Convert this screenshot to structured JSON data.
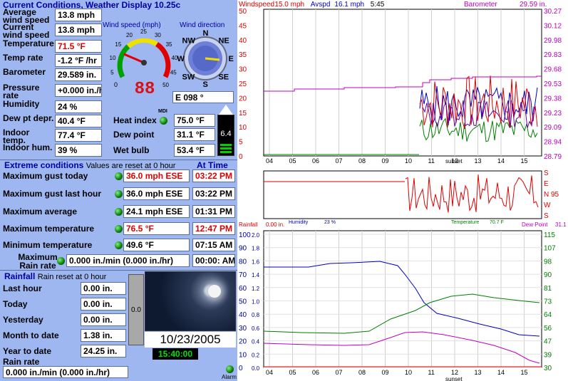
{
  "current": {
    "title": "Current Conditions, Weather Display 10.25c",
    "rows": [
      {
        "label": "Average wind speed",
        "value": "13.8 mph"
      },
      {
        "label": "Current wind speed",
        "value": "13.8 mph"
      },
      {
        "label": "Temperature",
        "value": "71.5 °F"
      },
      {
        "label": "Temp rate",
        "value": "-1.2 °F /hr"
      },
      {
        "label": "Barometer",
        "value": "29.589 in."
      },
      {
        "label": "Pressure rate",
        "value": "+0.000 in./hr"
      },
      {
        "label": "Humidity",
        "value": "24 %"
      },
      {
        "label": "Dew pt depr.",
        "value": "40.4 °F"
      },
      {
        "label": "Indoor temp.",
        "value": "77.4 °F"
      },
      {
        "label": "Indoor hum.",
        "value": "39 %"
      }
    ],
    "right_rows": [
      {
        "label": "Heat index",
        "value": "75.0 °F"
      },
      {
        "label": "Dew point",
        "value": "31.1 °F"
      },
      {
        "label": "Wet bulb",
        "value": "53.4 °F"
      }
    ],
    "mdi": "MDI",
    "uv_value": "6.4"
  },
  "gauges": {
    "speed_title": "Wind speed (mph)",
    "direction_title": "Wind direction",
    "speed_ticks": [
      "5",
      "10",
      "15",
      "20",
      "25",
      "30",
      "35",
      "40",
      "45",
      "50"
    ],
    "speed_digital": "88",
    "speed_zero": "0",
    "compass": [
      "N",
      "NE",
      "E",
      "SE",
      "S",
      "SW",
      "W",
      "NW"
    ],
    "direction_readout": "E  098 °"
  },
  "extremes": {
    "title": "Extreme conditions",
    "subtitle": "Values are reset at 0 hour",
    "at_time": "At Time",
    "rows": [
      {
        "label": "Maximum gust today",
        "value": "36.0 mph ESE",
        "time": "03:22 PM",
        "red": true
      },
      {
        "label": "Maximum gust last hour",
        "value": "36.0 mph ESE",
        "time": "03:22 PM",
        "red": false
      },
      {
        "label": "Maximum average",
        "value": "24.1 mph ESE",
        "time": "01:31 PM",
        "red": false
      },
      {
        "label": "Maximum temperature",
        "value": "76.5 °F",
        "time": "12:47 PM",
        "red": true
      },
      {
        "label": "Minimum temperature",
        "value": "49.6 °F",
        "time": "07:15 AM",
        "red": false
      }
    ],
    "rain_rate_label": "Maximum Rain rate",
    "rain_rate_value": "0.000 in./min (0.000 in./hr)",
    "rain_rate_time": "00:00: AM"
  },
  "rainfall": {
    "title": "Rainfall",
    "subtitle": "Rain reset at 0 hour",
    "rows": [
      {
        "label": "Last hour",
        "value": "0.00 in."
      },
      {
        "label": "Today",
        "value": "0.00 in."
      },
      {
        "label": "Yesterday",
        "value": "0.00 in."
      },
      {
        "label": "Month to date",
        "value": "1.38 in."
      },
      {
        "label": "Year to date",
        "value": "24.25 in."
      }
    ],
    "rate_label": "Rain rate",
    "rate_value": "0.000 in./min (0.000 in./hr)",
    "gauge_value": "0.0"
  },
  "webcam": {
    "date": "10/23/2005",
    "time": "15:40:00",
    "alarm": "Alarm"
  },
  "graphs": {
    "top_legend": {
      "windspeed": "Windspeed",
      "windspeed_val": "15.0 mph",
      "avspd": "Avspd",
      "avspd_val": "16.1 mph",
      "time": "5:45",
      "barometer": "Barometer",
      "barometer_val": "29.59 in."
    },
    "wind_ticks": [
      "50",
      "45",
      "40",
      "35",
      "30",
      "25",
      "20",
      "15",
      "10",
      "5",
      "0"
    ],
    "baro_ticks": [
      "30.27",
      "30.12",
      "29.98",
      "29.83",
      "29.68",
      "29.53",
      "29.38",
      "29.23",
      "29.09",
      "28.94",
      "28.79"
    ],
    "hours": [
      "04",
      "05",
      "06",
      "07",
      "08",
      "09",
      "10",
      "11",
      "12",
      "13",
      "14",
      "15"
    ],
    "sunset": "sunset",
    "dir_ticks": [
      "S",
      "E",
      "N 95",
      "W",
      "S"
    ],
    "bottom_legend": {
      "rainfall": "Rainfall",
      "rainfall_val": "0.00 in.",
      "humidity": "Humidity",
      "humidity_val": "23 %",
      "temperature": "Temperature",
      "temperature_val": "70.7 F",
      "dewpoint": "Dew Point",
      "dewpoint_val": "31.1"
    },
    "hum_ticks": [
      "100",
      "90",
      "80",
      "70",
      "60",
      "50",
      "40",
      "30",
      "20",
      "10",
      "0"
    ],
    "rain_ticks": [
      "2.0",
      "1.8",
      "1.6",
      "1.4",
      "1.2",
      "1.0",
      "0.8",
      "0.6",
      "0.4",
      "0.2",
      "0.0"
    ],
    "temp_ticks": [
      "115",
      "107",
      "98",
      "90",
      "81",
      "73",
      "64",
      "56",
      "47",
      "39",
      "30"
    ],
    "colors": {
      "wind": "#e00000",
      "avg": "#0000c0",
      "gust": "#008000",
      "baro": "#c000c0",
      "purple": "#6000a0"
    }
  }
}
